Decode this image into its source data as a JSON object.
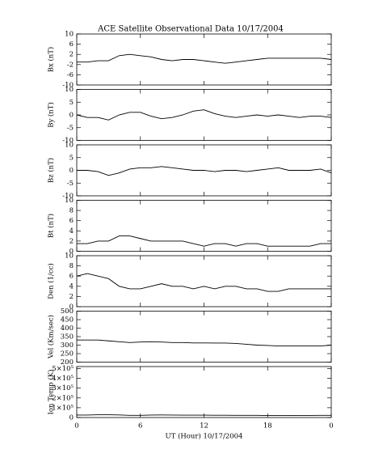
{
  "chart_data": [
    {
      "type": "line",
      "title": "ACE Satellite Observational Data   10/17/2004",
      "ylabel": "Bx (nT)",
      "color": "#000000",
      "x": [
        0,
        1,
        2,
        3,
        4,
        5,
        6,
        7,
        8,
        9,
        10,
        11,
        12,
        13,
        14,
        15,
        16,
        17,
        18,
        19,
        20,
        21,
        22,
        23,
        24
      ],
      "values": [
        -1,
        -1,
        -0.5,
        -0.5,
        1.5,
        2,
        1.5,
        1,
        0,
        -0.5,
        0,
        0,
        -0.5,
        -1,
        -1.5,
        -1,
        -0.5,
        0,
        0.5,
        0.5,
        0.5,
        0.5,
        0.5,
        0.5,
        0
      ],
      "xlim": [
        0,
        24
      ],
      "ylim": [
        -10,
        10
      ],
      "yticks": [
        10,
        6,
        2,
        -2,
        -6,
        -10
      ]
    },
    {
      "type": "line",
      "ylabel": "By (nT)",
      "color": "#000000",
      "x": [
        0,
        1,
        2,
        3,
        4,
        5,
        6,
        7,
        8,
        9,
        10,
        11,
        12,
        13,
        14,
        15,
        16,
        17,
        18,
        19,
        20,
        21,
        22,
        23,
        24
      ],
      "values": [
        0,
        -1,
        -1,
        -2,
        0,
        1,
        1,
        -0.5,
        -1.5,
        -1,
        0,
        1.5,
        2,
        0.5,
        -0.5,
        -1,
        -0.5,
        0,
        -0.5,
        0,
        -0.5,
        -1,
        -0.5,
        -0.5,
        -1
      ],
      "xlim": [
        0,
        24
      ],
      "ylim": [
        -10,
        10
      ],
      "yticks": [
        10,
        5,
        0,
        -5,
        -10
      ]
    },
    {
      "type": "line",
      "ylabel": "Bz (nT)",
      "color": "#000000",
      "x": [
        0,
        1,
        2,
        3,
        4,
        5,
        6,
        7,
        8,
        9,
        10,
        11,
        12,
        13,
        14,
        15,
        16,
        17,
        18,
        19,
        20,
        21,
        22,
        23,
        24
      ],
      "values": [
        0,
        0,
        -0.5,
        -2,
        -1,
        0.5,
        1,
        1,
        1.5,
        1,
        0.5,
        0,
        0,
        -0.5,
        0,
        0,
        -0.5,
        0,
        0.5,
        1,
        0,
        0,
        0,
        0.5,
        -1
      ],
      "xlim": [
        0,
        24
      ],
      "ylim": [
        -10,
        10
      ],
      "yticks": [
        10,
        5,
        0,
        -5,
        -10
      ]
    },
    {
      "type": "line",
      "ylabel": "Bt (nT)",
      "color": "#000000",
      "x": [
        0,
        1,
        2,
        3,
        4,
        5,
        6,
        7,
        8,
        9,
        10,
        11,
        12,
        13,
        14,
        15,
        16,
        17,
        18,
        19,
        20,
        21,
        22,
        23,
        24
      ],
      "values": [
        1.5,
        1.5,
        2,
        2,
        3,
        3,
        2.5,
        2,
        2,
        2,
        2,
        1.5,
        1,
        1.5,
        1.5,
        1,
        1.5,
        1.5,
        1,
        1,
        1,
        1,
        1,
        1.5,
        1.5
      ],
      "xlim": [
        0,
        24
      ],
      "ylim": [
        0,
        10
      ],
      "yticks": [
        10,
        8,
        6,
        4,
        2,
        0
      ]
    },
    {
      "type": "line",
      "ylabel": "Den (1/cc)",
      "color": "#000000",
      "x": [
        0,
        1,
        2,
        3,
        4,
        5,
        6,
        7,
        8,
        9,
        10,
        11,
        12,
        13,
        14,
        15,
        16,
        17,
        18,
        19,
        20,
        21,
        22,
        23,
        24
      ],
      "values": [
        6,
        6.5,
        6,
        5.5,
        4,
        3.5,
        3.5,
        4,
        4.5,
        4,
        4,
        3.5,
        4,
        3.5,
        4,
        4,
        3.5,
        3.5,
        3,
        3,
        3.5,
        3.5,
        3.5,
        3.5,
        3.5
      ],
      "xlim": [
        0,
        24
      ],
      "ylim": [
        0,
        10
      ],
      "yticks": [
        10,
        8,
        6,
        4,
        2,
        0
      ]
    },
    {
      "type": "line",
      "ylabel": "Vel (Km/sec)",
      "color": "#000000",
      "x": [
        0,
        1,
        2,
        3,
        4,
        5,
        6,
        7,
        8,
        9,
        10,
        11,
        12,
        13,
        14,
        15,
        16,
        17,
        18,
        19,
        20,
        21,
        22,
        23,
        24
      ],
      "values": [
        330,
        330,
        330,
        325,
        320,
        315,
        318,
        320,
        318,
        315,
        315,
        313,
        313,
        312,
        312,
        310,
        305,
        300,
        298,
        295,
        295,
        295,
        295,
        295,
        300
      ],
      "xlim": [
        0,
        24
      ],
      "ylim": [
        200,
        500
      ],
      "yticks": [
        500,
        450,
        400,
        350,
        300,
        250,
        200
      ]
    },
    {
      "type": "line",
      "ylabel": "Ion Temp (K)",
      "xlabel": "UT (Hour)  10/17/2004",
      "color": "#000000",
      "x": [
        0,
        1,
        2,
        3,
        4,
        5,
        6,
        7,
        8,
        9,
        10,
        11,
        12,
        13,
        14,
        15,
        16,
        17,
        18,
        19,
        20,
        21,
        22,
        23,
        24
      ],
      "values": [
        25000,
        25000,
        28000,
        28000,
        26000,
        22000,
        22000,
        25000,
        26000,
        25000,
        24000,
        24000,
        24000,
        23000,
        23000,
        22000,
        22000,
        22000,
        20000,
        20000,
        20000,
        21000,
        21000,
        22000,
        22000
      ],
      "xlim": [
        0,
        24
      ],
      "ylim": [
        0,
        520000
      ],
      "yticks": [
        {
          "value": 500000,
          "label": "5×10⁵"
        },
        {
          "value": 400000,
          "label": "4×10⁵"
        },
        {
          "value": 300000,
          "label": "3×10⁵"
        },
        {
          "value": 200000,
          "label": "2×10⁵"
        },
        {
          "value": 100000,
          "label": "1×10⁵"
        },
        0
      ],
      "xticks": [
        0,
        6,
        12,
        18,
        {
          "value": 24,
          "label": "0"
        }
      ]
    }
  ]
}
